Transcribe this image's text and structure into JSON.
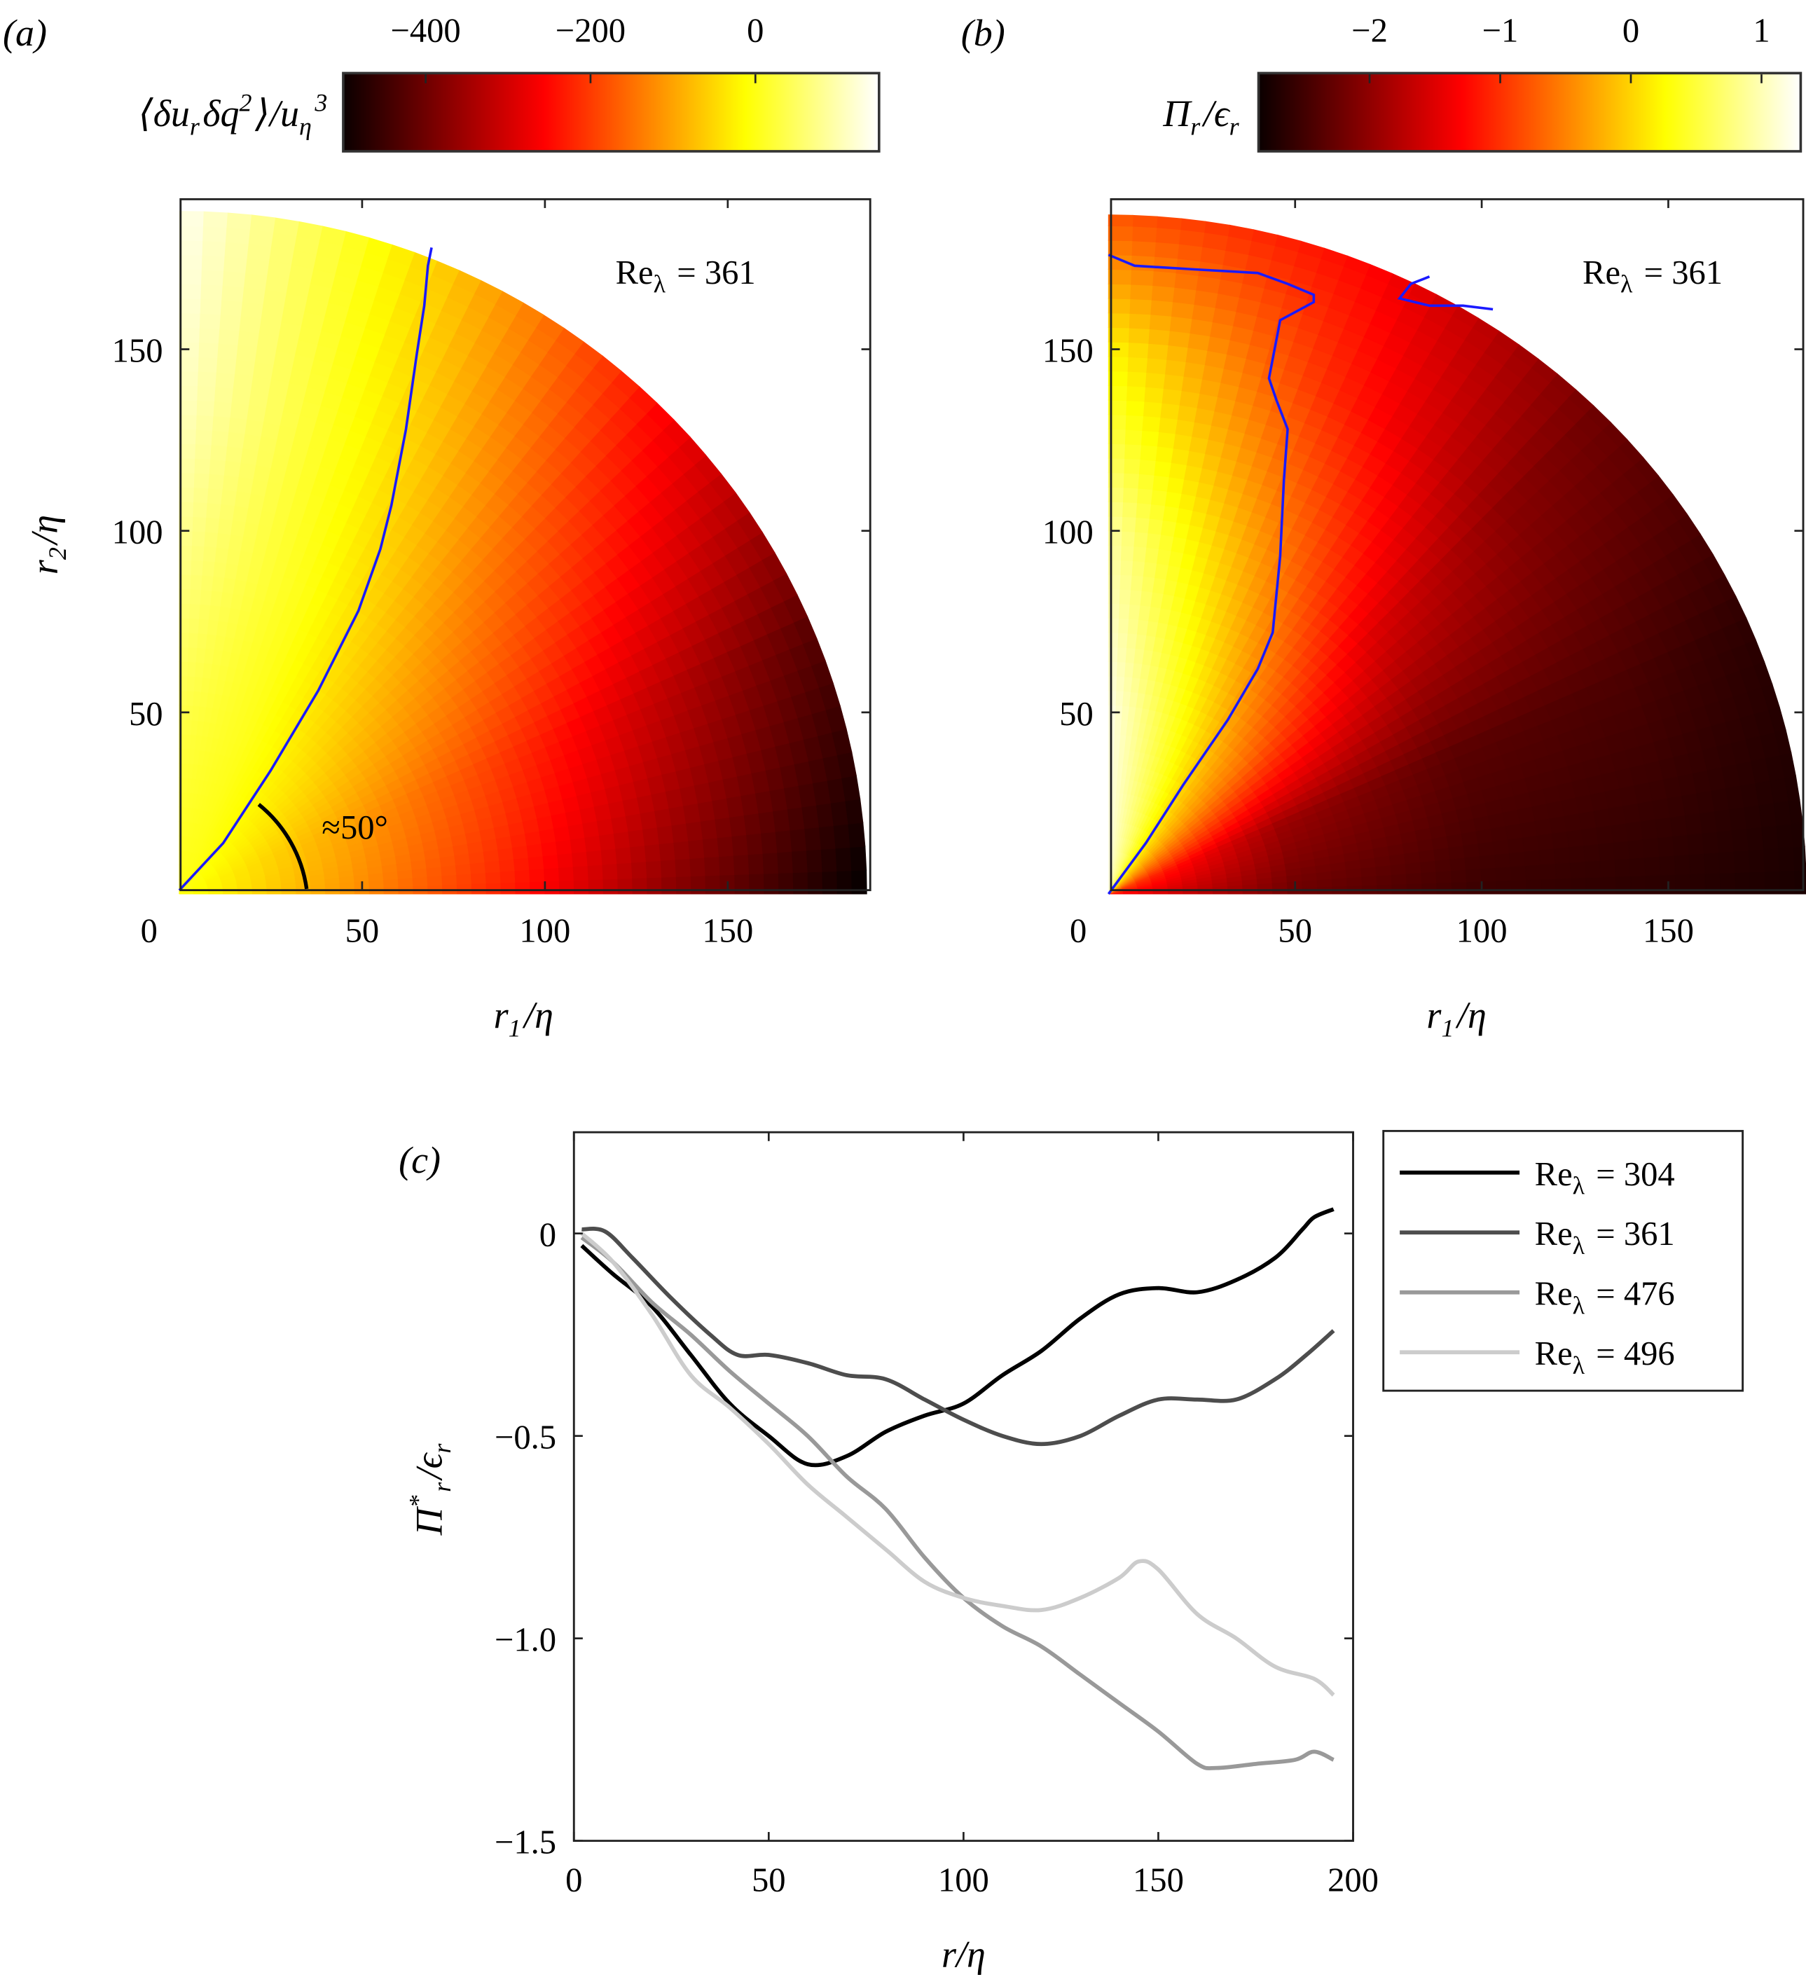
{
  "colormap": "hot",
  "chart_data": [
    {
      "type": "heatmap",
      "panel_label": "(a)",
      "coordinates": "polar quarter-disc",
      "xlabel": "r_1/η",
      "ylabel": "r_2/η",
      "xlim": [
        0,
        188
      ],
      "ylim": [
        0,
        190
      ],
      "xticks": [
        "0",
        "50",
        "100",
        "150"
      ],
      "yticks": [
        "50",
        "100",
        "150"
      ],
      "colorbar": {
        "label": "⟨δu_rδq^2⟩/u_η^3",
        "range": [
          -500,
          150
        ],
        "ticks": [
          "−400",
          "−200",
          "0"
        ],
        "tick_values": [
          -400,
          -200,
          0
        ],
        "placement": "top"
      },
      "annotation": "Re_λ = 361",
      "angle_annotation": "≈50°",
      "grid_radii": [
        0,
        45,
        90,
        135,
        188
      ],
      "grid_angles_deg": [
        0,
        22.5,
        45,
        67.5,
        90
      ],
      "values": [
        [
          0,
          0,
          0,
          0,
          0
        ],
        [
          -110,
          -90,
          -40,
          5,
          30
        ],
        [
          -230,
          -190,
          -100,
          0,
          70
        ],
        [
          -370,
          -300,
          -170,
          -20,
          110
        ],
        [
          -500,
          -420,
          -260,
          -60,
          140
        ]
      ],
      "zero_contours": [
        [
          [
            0,
            1
          ],
          [
            12,
            14
          ],
          [
            25,
            34
          ],
          [
            38,
            56
          ],
          [
            49,
            78
          ],
          [
            55,
            95
          ],
          [
            58,
            107
          ],
          [
            62,
            128
          ],
          [
            65,
            149
          ],
          [
            67,
            162
          ],
          [
            68,
            173
          ],
          [
            69,
            178
          ]
        ]
      ],
      "contour_color": "#1a1aff"
    },
    {
      "type": "heatmap",
      "panel_label": "(b)",
      "coordinates": "polar quarter-disc",
      "xlabel": "r_1/η",
      "xlim": [
        0,
        186
      ],
      "ylim": [
        0,
        190
      ],
      "xticks": [
        "0",
        "50",
        "100",
        "150"
      ],
      "yticks": [
        "50",
        "100",
        "150"
      ],
      "colorbar": {
        "label": "Π_r/ϵ_r",
        "range": [
          -2.85,
          1.3
        ],
        "ticks": [
          "−2",
          "−1",
          "0",
          "1"
        ],
        "tick_values": [
          -2,
          -1,
          0,
          1
        ],
        "placement": "top"
      },
      "annotation": "Re_λ = 361",
      "grid_radii": [
        0,
        50,
        100,
        150,
        188
      ],
      "grid_angles_deg": [
        0,
        22.5,
        45,
        67.5,
        90
      ],
      "values": [
        [
          -1.3,
          -0.8,
          0.0,
          0.8,
          1.2
        ],
        [
          -2.2,
          -1.9,
          -0.6,
          0.3,
          1.2
        ],
        [
          -2.5,
          -2.3,
          -1.5,
          -0.3,
          0.9
        ],
        [
          -2.6,
          -2.4,
          -2.0,
          -1.0,
          0.2
        ],
        [
          -2.7,
          -2.6,
          -2.2,
          -1.3,
          -0.8
        ]
      ],
      "zero_contours": [
        [
          [
            0,
            0
          ],
          [
            10,
            14
          ],
          [
            20,
            30
          ],
          [
            32,
            48
          ],
          [
            40,
            62
          ],
          [
            44,
            72
          ],
          [
            46,
            93
          ],
          [
            47,
            114
          ],
          [
            48,
            128
          ],
          [
            45,
            136
          ],
          [
            43,
            142
          ],
          [
            46,
            158
          ],
          [
            55,
            163
          ],
          [
            55,
            165
          ],
          [
            48,
            168
          ],
          [
            40,
            171
          ],
          [
            23,
            172
          ],
          [
            7,
            173
          ],
          [
            0,
            176
          ]
        ],
        [
          [
            86,
            170
          ],
          [
            81,
            168
          ],
          [
            78,
            164
          ],
          [
            86,
            162
          ],
          [
            95,
            162
          ],
          [
            103,
            161
          ]
        ]
      ],
      "contour_color": "#1a1aff"
    },
    {
      "type": "line",
      "panel_label": "(c)",
      "xlabel": "r/η",
      "ylabel": "Π^*_r/ϵ_r",
      "xlim": [
        0,
        200
      ],
      "ylim": [
        -1.5,
        0.25
      ],
      "xticks": [
        "0",
        "50",
        "100",
        "150",
        "200"
      ],
      "yticks": [
        "0",
        "−0.5",
        "−1.0",
        "−1.5"
      ],
      "ytick_values": [
        0,
        -0.5,
        -1.0,
        -1.5
      ],
      "xtick_values": [
        0,
        50,
        100,
        150,
        200
      ],
      "legend": "outside-right",
      "series": [
        {
          "name": "Re_λ = 304",
          "color": "#000000",
          "x": [
            2,
            10,
            20,
            30,
            40,
            50,
            60,
            70,
            80,
            90,
            100,
            110,
            120,
            130,
            140,
            150,
            160,
            170,
            180,
            187,
            190,
            195
          ],
          "y": [
            -0.03,
            -0.1,
            -0.18,
            -0.3,
            -0.42,
            -0.5,
            -0.57,
            -0.55,
            -0.49,
            -0.45,
            -0.42,
            -0.35,
            -0.29,
            -0.21,
            -0.15,
            -0.135,
            -0.145,
            -0.115,
            -0.06,
            0.01,
            0.04,
            0.06
          ]
        },
        {
          "name": "Re_λ = 361",
          "color": "#4d4d4d",
          "x": [
            2,
            8,
            15,
            25,
            35,
            42,
            50,
            60,
            70,
            80,
            90,
            100,
            110,
            120,
            130,
            140,
            150,
            160,
            170,
            180,
            188,
            195
          ],
          "y": [
            0.01,
            0.005,
            -0.06,
            -0.16,
            -0.25,
            -0.3,
            -0.3,
            -0.32,
            -0.35,
            -0.36,
            -0.41,
            -0.46,
            -0.5,
            -0.52,
            -0.5,
            -0.45,
            -0.41,
            -0.41,
            -0.41,
            -0.36,
            -0.3,
            -0.24
          ]
        },
        {
          "name": "Re_λ = 476",
          "color": "#999999",
          "x": [
            2,
            10,
            20,
            30,
            40,
            50,
            60,
            70,
            80,
            90,
            100,
            110,
            120,
            130,
            140,
            150,
            160,
            165,
            175,
            185,
            190,
            195
          ],
          "y": [
            -0.01,
            -0.07,
            -0.17,
            -0.25,
            -0.34,
            -0.42,
            -0.5,
            -0.6,
            -0.68,
            -0.8,
            -0.9,
            -0.97,
            -1.02,
            -1.09,
            -1.16,
            -1.23,
            -1.31,
            -1.32,
            -1.31,
            -1.3,
            -1.28,
            -1.3
          ]
        },
        {
          "name": "Re_λ = 496",
          "color": "#cccccc",
          "x": [
            2,
            10,
            20,
            30,
            40,
            50,
            60,
            70,
            80,
            90,
            100,
            110,
            120,
            130,
            140,
            145,
            150,
            160,
            170,
            180,
            190,
            195
          ],
          "y": [
            0.0,
            -0.07,
            -0.2,
            -0.35,
            -0.43,
            -0.52,
            -0.62,
            -0.7,
            -0.78,
            -0.86,
            -0.9,
            -0.92,
            -0.93,
            -0.9,
            -0.85,
            -0.81,
            -0.83,
            -0.94,
            -1.0,
            -1.07,
            -1.1,
            -1.14
          ]
        }
      ]
    }
  ]
}
